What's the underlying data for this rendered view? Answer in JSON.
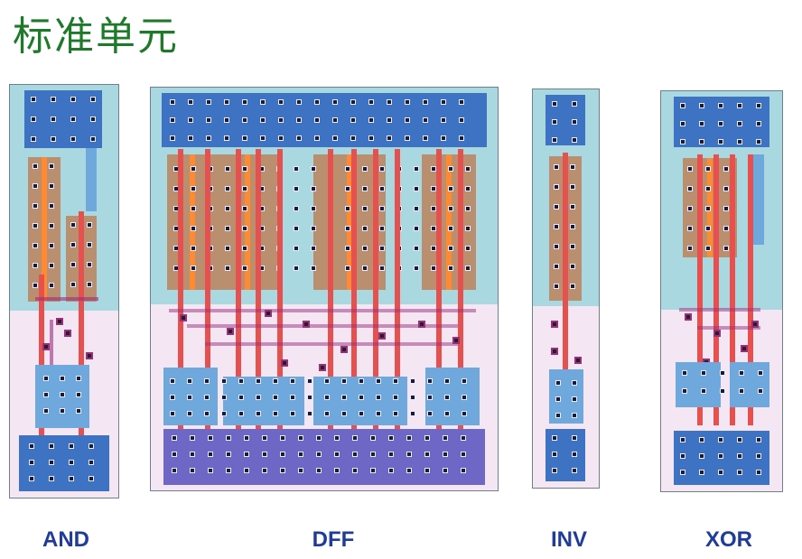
{
  "title": "标准单元",
  "cells": [
    {
      "id": "and",
      "label": "AND"
    },
    {
      "id": "dff",
      "label": "DFF"
    },
    {
      "id": "inv",
      "label": "INV"
    },
    {
      "id": "xor",
      "label": "XOR"
    }
  ],
  "colors": {
    "title": "#1e7a2a",
    "label": "#1f3c9a",
    "nwell": "#a9d8e0",
    "pwell": "#f5e6f4",
    "metal1_blue": "#3e73c4",
    "metal1_light": "#6ea8dc",
    "rail_purple": "#6e67c6",
    "poly": "#e6504e",
    "pdiff": "#b98f6f",
    "pdiff_core": "#ff8a34",
    "contact": "#1a1a40",
    "via": "#9c2d7d"
  }
}
